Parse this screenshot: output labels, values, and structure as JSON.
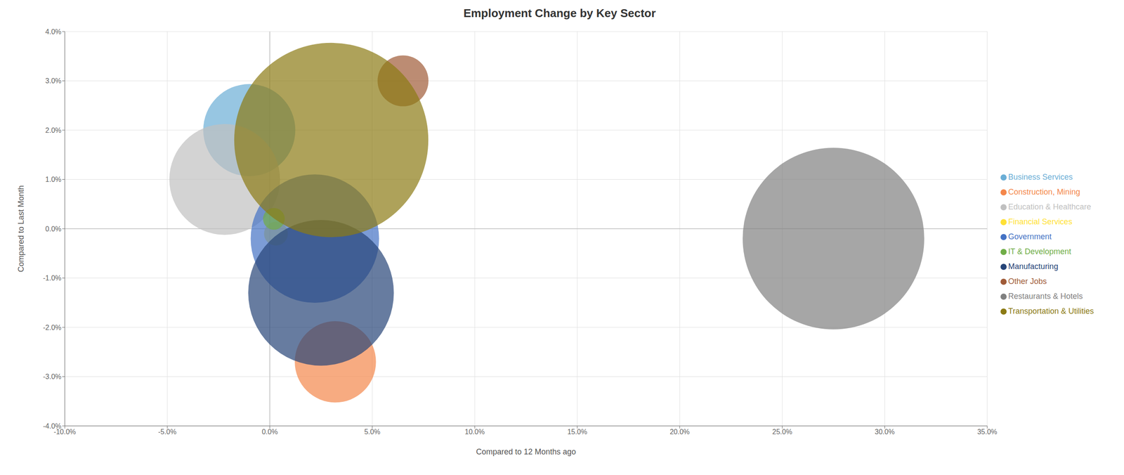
{
  "chart_data": {
    "type": "scatter",
    "title": "Employment Change by Key Sector",
    "xlabel": "Compared to 12 Months ago",
    "ylabel": "Compared to Last Month",
    "xlim": [
      -0.1,
      0.35
    ],
    "ylim": [
      -0.04,
      0.04
    ],
    "xticks": [
      {
        "value": -0.1,
        "label": "-10.0%"
      },
      {
        "value": -0.05,
        "label": "-5.0%"
      },
      {
        "value": 0.0,
        "label": "0.0%"
      },
      {
        "value": 0.05,
        "label": "5.0%"
      },
      {
        "value": 0.1,
        "label": "10.0%"
      },
      {
        "value": 0.15,
        "label": "15.0%"
      },
      {
        "value": 0.2,
        "label": "20.0%"
      },
      {
        "value": 0.25,
        "label": "25.0%"
      },
      {
        "value": 0.3,
        "label": "30.0%"
      },
      {
        "value": 0.35,
        "label": "35.0%"
      }
    ],
    "yticks": [
      {
        "value": -0.04,
        "label": "-4.0%"
      },
      {
        "value": -0.03,
        "label": "-3.0%"
      },
      {
        "value": -0.02,
        "label": "-2.0%"
      },
      {
        "value": -0.01,
        "label": "-1.0%"
      },
      {
        "value": 0.0,
        "label": "0.0%"
      },
      {
        "value": 0.01,
        "label": "1.0%"
      },
      {
        "value": 0.02,
        "label": "2.0%"
      },
      {
        "value": 0.03,
        "label": "3.0%"
      },
      {
        "value": 0.04,
        "label": "4.0%"
      }
    ],
    "grid": true,
    "legend": "right",
    "series": [
      {
        "name": "Business Services",
        "x": -0.01,
        "y": 0.02,
        "size": 18000,
        "color": "#6baed6"
      },
      {
        "name": "Construction, Mining",
        "x": 0.032,
        "y": -0.027,
        "size": 14000,
        "color": "#f4874b"
      },
      {
        "name": "Education & Healthcare",
        "x": -0.022,
        "y": 0.01,
        "size": 26000,
        "color": "#c0c0c0"
      },
      {
        "name": "Financial Services",
        "x": 0.003,
        "y": -0.001,
        "size": 1200,
        "color": "#ffe135"
      },
      {
        "name": "Government",
        "x": 0.022,
        "y": -0.002,
        "size": 35000,
        "color": "#4472c4"
      },
      {
        "name": "IT & Development",
        "x": 0.002,
        "y": 0.002,
        "size": 1000,
        "color": "#70ad47"
      },
      {
        "name": "Manufacturing",
        "x": 0.025,
        "y": -0.013,
        "size": 45000,
        "color": "#264478"
      },
      {
        "name": "Other Jobs",
        "x": 0.065,
        "y": 0.03,
        "size": 5500,
        "color": "#a05b38"
      },
      {
        "name": "Restaurants & Hotels",
        "x": 0.275,
        "y": -0.002,
        "size": 70000,
        "color": "#808080"
      },
      {
        "name": "Transportation & Utilities",
        "x": 0.03,
        "y": 0.018,
        "size": 80000,
        "color": "#8b7a14"
      }
    ]
  }
}
